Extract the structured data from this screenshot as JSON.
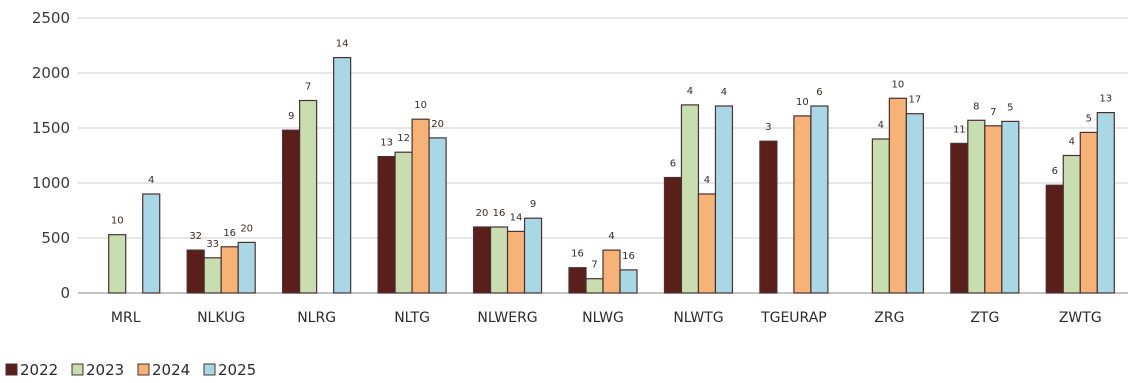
{
  "chart_data": {
    "type": "bar",
    "title": "",
    "xlabel": "",
    "ylabel": "",
    "ylim": [
      0,
      2500
    ],
    "yticks": [
      "0",
      "500",
      "1000",
      "1500",
      "2000",
      "2500"
    ],
    "grid": true,
    "legend_position": "bottom-left",
    "categories": [
      "MRL",
      "NLKUG",
      "NLRG",
      "NLTG",
      "NLWERG",
      "NLWG",
      "NLWTG",
      "TGEURAP",
      "ZRG",
      "ZTG",
      "ZWTG"
    ],
    "series": [
      {
        "name": "2022",
        "color": "#5a1f1a",
        "values": [
          null,
          390,
          1480,
          1240,
          600,
          230,
          1050,
          1380,
          null,
          1360,
          980
        ],
        "labels": [
          "",
          "32",
          "9",
          "13",
          "20",
          "16",
          "6",
          "3",
          "",
          "11",
          "6"
        ]
      },
      {
        "name": "2023",
        "color": "#c8ddb0",
        "values": [
          530,
          320,
          1750,
          1280,
          600,
          130,
          1710,
          null,
          1400,
          1570,
          1250
        ],
        "labels": [
          "10",
          "33",
          "7",
          "12",
          "16",
          "7",
          "4",
          "",
          "4",
          "8",
          "4"
        ]
      },
      {
        "name": "2024",
        "color": "#f7b277",
        "values": [
          null,
          420,
          null,
          1580,
          560,
          390,
          900,
          1610,
          1770,
          1520,
          1460
        ],
        "labels": [
          "",
          "16",
          "",
          "10",
          "14",
          "4",
          "4",
          "10",
          "10",
          "7",
          "5"
        ]
      },
      {
        "name": "2025",
        "color": "#a8d8e6",
        "values": [
          900,
          460,
          2140,
          1410,
          680,
          210,
          1700,
          1700,
          1630,
          1560,
          1640
        ],
        "labels": [
          "4",
          "20",
          "14",
          "20",
          "9",
          "16",
          "4",
          "6",
          "17",
          "5",
          "13"
        ]
      }
    ]
  }
}
